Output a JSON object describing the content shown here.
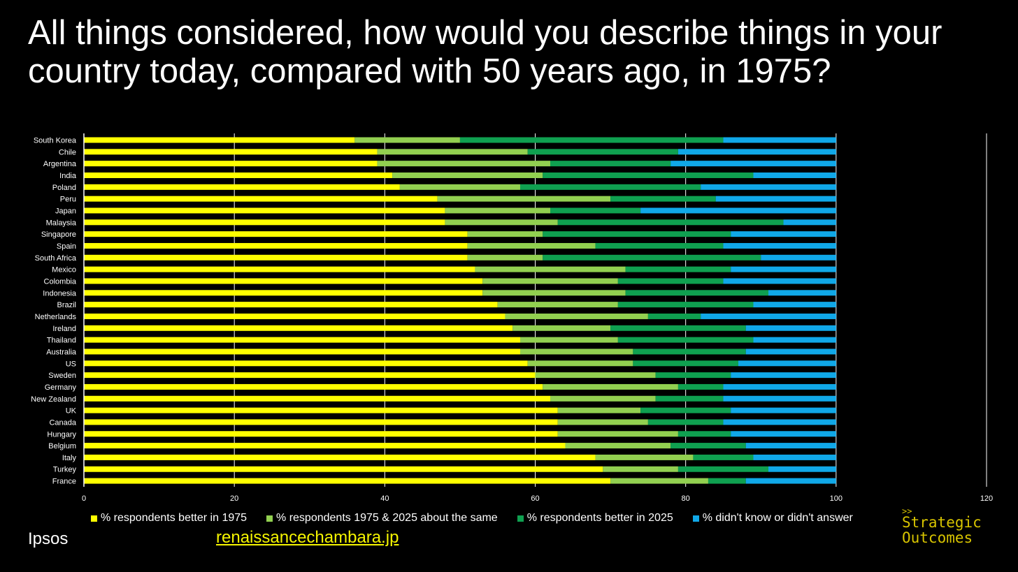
{
  "title": "All things considered, how would you describe things in your country today, compared with 50 years ago, in 1975?",
  "source": "Ipsos",
  "link": "renaissancechambara.jp",
  "brand": {
    "chevrons": ">>",
    "line1": "Strategic",
    "line2": "Outcomes"
  },
  "colors": {
    "better1975": "#ffff00",
    "same": "#92d050",
    "better2025": "#0fa050",
    "dontknow": "#10a8e8",
    "grid": "#ffffff",
    "text": "#ffffff"
  },
  "chart_data": {
    "type": "bar",
    "orientation": "horizontal",
    "stacked": true,
    "title": "All things considered, how would you describe things in your country today, compared with 50 years ago, in 1975?",
    "xlabel": "",
    "ylabel": "",
    "xlim": [
      0,
      120
    ],
    "xticks": [
      0,
      20,
      40,
      60,
      80,
      100,
      120
    ],
    "grid": true,
    "legend_position": "bottom",
    "categories": [
      "South Korea",
      "Chile",
      "Argentina",
      "India",
      "Poland",
      "Peru",
      "Japan",
      "Malaysia",
      "Singapore",
      "Spain",
      "South Africa",
      "Mexico",
      "Colombia",
      "Indonesia",
      "Brazil",
      "Netherlands",
      "Ireland",
      "Thailand",
      "Australia",
      "US",
      "Sweden",
      "Germany",
      "New Zealand",
      "UK",
      "Canada",
      "Hungary",
      "Belgium",
      "Italy",
      "Turkey",
      "France"
    ],
    "series": [
      {
        "name": "% respondents better in 1975",
        "color_key": "better1975",
        "values": [
          36,
          39,
          39,
          41,
          42,
          47,
          48,
          48,
          51,
          51,
          51,
          52,
          53,
          53,
          55,
          56,
          57,
          58,
          58,
          59,
          60,
          61,
          62,
          63,
          63,
          63,
          64,
          68,
          69,
          70
        ]
      },
      {
        "name": "% respondents 1975 & 2025 about the same",
        "color_key": "same",
        "values": [
          14,
          20,
          23,
          20,
          16,
          23,
          14,
          15,
          10,
          17,
          10,
          20,
          18,
          19,
          16,
          19,
          13,
          13,
          15,
          14,
          16,
          18,
          14,
          11,
          12,
          16,
          14,
          13,
          10,
          13
        ]
      },
      {
        "name": "% respondents better in 2025",
        "color_key": "better2025",
        "values": [
          35,
          20,
          16,
          28,
          24,
          14,
          12,
          30,
          25,
          17,
          29,
          14,
          14,
          19,
          18,
          7,
          18,
          18,
          15,
          14,
          10,
          6,
          9,
          12,
          10,
          7,
          10,
          8,
          12,
          5
        ]
      },
      {
        "name": "% didn't know or didn't answer",
        "color_key": "dontknow",
        "values": [
          15,
          21,
          22,
          11,
          18,
          16,
          26,
          7,
          14,
          15,
          10,
          14,
          15,
          9,
          11,
          18,
          12,
          11,
          12,
          13,
          14,
          15,
          15,
          14,
          15,
          14,
          12,
          11,
          9,
          12
        ]
      }
    ]
  }
}
